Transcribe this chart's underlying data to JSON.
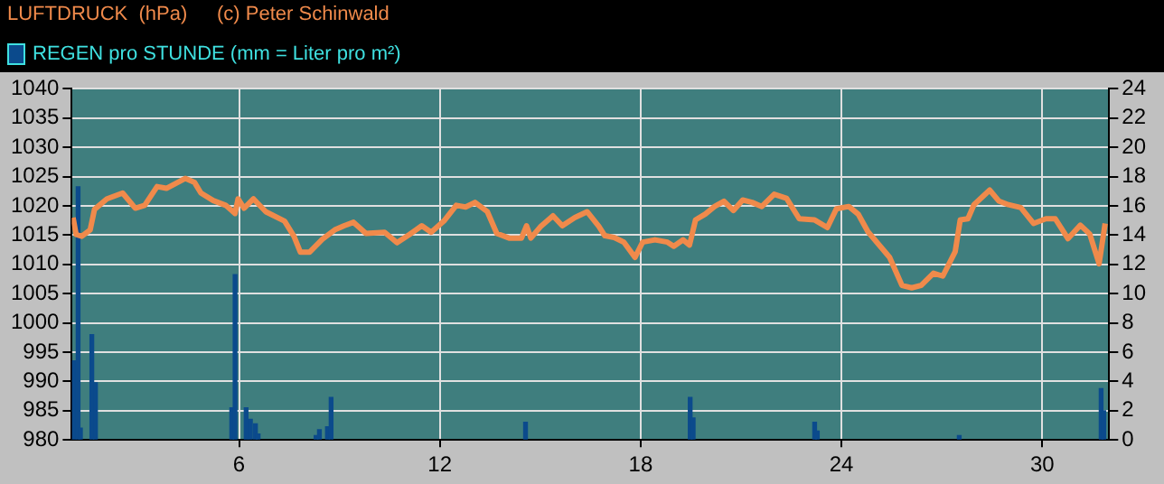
{
  "chart_data": {
    "type": "line",
    "legend": "top left",
    "grid": true,
    "annotations": [
      "(c) Peter Schinwald"
    ],
    "xlim": [
      1,
      32
    ],
    "xticks": [
      6,
      12,
      18,
      24,
      30
    ],
    "ylim": [
      980,
      1040
    ],
    "yticks": [
      980,
      985,
      990,
      995,
      1000,
      1005,
      1010,
      1015,
      1020,
      1025,
      1030,
      1035,
      1040
    ],
    "y2lim": [
      0,
      24
    ],
    "y2ticks": [
      0,
      2,
      4,
      6,
      8,
      10,
      12,
      14,
      16,
      18,
      20,
      22,
      24
    ],
    "series": [
      {
        "name": "LUFTDRUCK  (hPa)",
        "color": "#f08a4b",
        "x": [
          1.04,
          1.13,
          1.3,
          1.55,
          1.68,
          2.05,
          2.52,
          2.9,
          3.18,
          3.55,
          3.83,
          4.39,
          4.67,
          4.86,
          5.23,
          5.6,
          5.88,
          5.97,
          6.15,
          6.43,
          6.8,
          7.36,
          7.64,
          7.83,
          8.11,
          8.49,
          8.86,
          9.14,
          9.42,
          9.79,
          10.35,
          10.72,
          11.09,
          11.46,
          11.74,
          12.12,
          12.49,
          12.77,
          13.05,
          13.42,
          13.7,
          14.07,
          14.44,
          14.59,
          14.72,
          15.0,
          15.38,
          15.66,
          16.03,
          16.4,
          16.75,
          16.93,
          17.21,
          17.5,
          17.83,
          18.06,
          18.43,
          18.8,
          18.99,
          19.27,
          19.46,
          19.64,
          19.93,
          20.21,
          20.49,
          20.77,
          21.05,
          21.33,
          21.62,
          21.99,
          22.36,
          22.74,
          23.2,
          23.58,
          23.85,
          24.22,
          24.5,
          24.79,
          25.16,
          25.44,
          25.81,
          26.1,
          26.38,
          26.75,
          27.03,
          27.4,
          27.55,
          27.78,
          27.96,
          28.43,
          28.71,
          28.99,
          29.36,
          29.74,
          30.11,
          30.39,
          30.77,
          31.14,
          31.42,
          31.7,
          31.88
        ],
        "values": [
          1018.0,
          1015.1,
          1014.8,
          1015.9,
          1019.4,
          1021.2,
          1022.2,
          1019.6,
          1020.1,
          1023.3,
          1023.0,
          1024.7,
          1024.0,
          1022.2,
          1020.9,
          1020.1,
          1018.7,
          1021.2,
          1019.6,
          1021.2,
          1019.0,
          1017.4,
          1014.8,
          1012.1,
          1012.1,
          1014.3,
          1015.9,
          1016.6,
          1017.2,
          1015.3,
          1015.5,
          1013.7,
          1015.1,
          1016.6,
          1015.5,
          1017.4,
          1020.1,
          1019.8,
          1020.6,
          1019.0,
          1015.3,
          1014.5,
          1014.5,
          1016.6,
          1014.5,
          1016.4,
          1018.3,
          1016.6,
          1018.0,
          1019.0,
          1016.5,
          1014.9,
          1014.6,
          1013.8,
          1011.2,
          1013.8,
          1014.2,
          1013.8,
          1013.1,
          1014.2,
          1013.3,
          1017.6,
          1018.6,
          1019.9,
          1020.8,
          1019.2,
          1021.0,
          1020.6,
          1019.9,
          1022.0,
          1021.3,
          1017.8,
          1017.6,
          1016.3,
          1019.5,
          1019.9,
          1018.6,
          1015.6,
          1013.1,
          1011.2,
          1006.4,
          1006.0,
          1006.4,
          1008.5,
          1008.0,
          1012.2,
          1017.6,
          1017.8,
          1020.2,
          1022.7,
          1020.8,
          1020.2,
          1019.7,
          1017.0,
          1017.8,
          1017.8,
          1014.4,
          1016.7,
          1015.2,
          1010.1,
          1017.0
        ]
      },
      {
        "name": "REGEN pro STUNDE (mm = Liter pro m²)",
        "type": "bar",
        "axis": "y2",
        "color": "#0b4a8c",
        "x": [
          1.07,
          1.19,
          1.26,
          1.6,
          1.71,
          5.78,
          5.88,
          6.21,
          6.34,
          6.49,
          6.57,
          8.3,
          8.4,
          8.64,
          8.75,
          14.56,
          19.48,
          19.57,
          23.2,
          23.28,
          27.52,
          31.76,
          31.84
        ],
        "values": [
          5.4,
          17.3,
          0.8,
          7.2,
          3.9,
          2.2,
          11.3,
          2.2,
          1.4,
          1.1,
          0.4,
          0.3,
          0.7,
          0.9,
          2.9,
          1.2,
          2.9,
          1.5,
          1.2,
          0.6,
          0.3,
          3.5,
          2.0
        ]
      }
    ]
  }
}
